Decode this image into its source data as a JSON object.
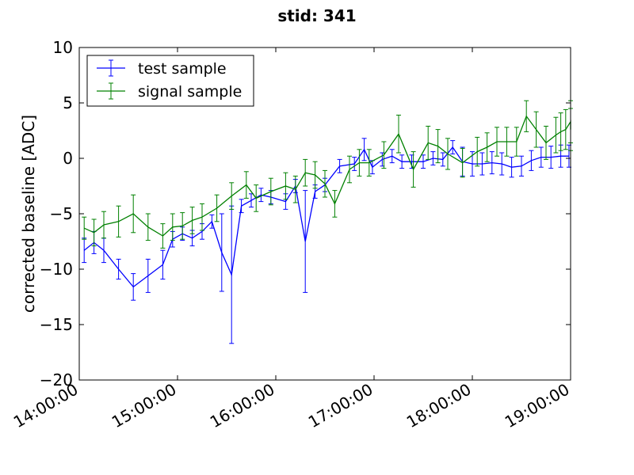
{
  "chart_data": {
    "type": "line",
    "title": "stid: 341",
    "xlabel": "",
    "ylabel": "corrected baseline [ADC]",
    "xlim": [
      "14:00:00",
      "19:00:00"
    ],
    "ylim": [
      -20,
      10
    ],
    "x_ticks": [
      "14:00:00",
      "15:00:00",
      "16:00:00",
      "17:00:00",
      "18:00:00",
      "19:00:00"
    ],
    "y_ticks": [
      10,
      5,
      0,
      -5,
      -10,
      -15,
      -20
    ],
    "y_tick_labels": [
      "10",
      "5",
      "0",
      "−5",
      "−10",
      "−15",
      "−20"
    ],
    "grid": false,
    "legend_position": "top-left",
    "error_bars": true,
    "series": [
      {
        "name": "test sample",
        "color": "#0000ff",
        "points": [
          {
            "x": "14:03:00",
            "y": -8.3,
            "err": 1.1
          },
          {
            "x": "14:09:00",
            "y": -7.6,
            "err": 1.0
          },
          {
            "x": "14:15:00",
            "y": -8.3,
            "err": 1.1
          },
          {
            "x": "14:24:00",
            "y": -10.0,
            "err": 0.9
          },
          {
            "x": "14:33:00",
            "y": -11.6,
            "err": 1.2
          },
          {
            "x": "14:42:00",
            "y": -10.6,
            "err": 1.5
          },
          {
            "x": "14:51:00",
            "y": -9.6,
            "err": 1.3
          },
          {
            "x": "14:57:00",
            "y": -7.3,
            "err": 0.7
          },
          {
            "x": "15:03:00",
            "y": -6.8,
            "err": 0.6
          },
          {
            "x": "15:09:00",
            "y": -7.2,
            "err": 0.7
          },
          {
            "x": "15:15:00",
            "y": -6.6,
            "err": 0.7
          },
          {
            "x": "15:21:00",
            "y": -5.7,
            "err": 0.6
          },
          {
            "x": "15:27:00",
            "y": -8.5,
            "err": 3.5
          },
          {
            "x": "15:33:00",
            "y": -10.5,
            "err": 6.2
          },
          {
            "x": "15:39:00",
            "y": -4.3,
            "err": 0.6
          },
          {
            "x": "15:45:00",
            "y": -3.8,
            "err": 0.6
          },
          {
            "x": "15:51:00",
            "y": -3.3,
            "err": 0.6
          },
          {
            "x": "15:57:00",
            "y": -3.5,
            "err": 0.6
          },
          {
            "x": "16:06:00",
            "y": -3.9,
            "err": 0.7
          },
          {
            "x": "16:12:00",
            "y": -2.5,
            "err": 0.6
          },
          {
            "x": "16:18:00",
            "y": -7.5,
            "err": 4.6
          },
          {
            "x": "16:24:00",
            "y": -3.0,
            "err": 0.6
          },
          {
            "x": "16:30:00",
            "y": -2.4,
            "err": 0.6
          },
          {
            "x": "16:39:00",
            "y": -0.7,
            "err": 0.6
          },
          {
            "x": "16:48:00",
            "y": -0.5,
            "err": 0.6
          },
          {
            "x": "16:54:00",
            "y": 0.8,
            "err": 1.0
          },
          {
            "x": "16:59:00",
            "y": -0.8,
            "err": 0.6
          },
          {
            "x": "17:05:00",
            "y": -0.1,
            "err": 0.6
          },
          {
            "x": "17:11:00",
            "y": 0.2,
            "err": 0.6
          },
          {
            "x": "17:17:00",
            "y": -0.3,
            "err": 0.6
          },
          {
            "x": "17:23:00",
            "y": -0.3,
            "err": 0.6
          },
          {
            "x": "17:30:00",
            "y": -0.3,
            "err": 0.6
          },
          {
            "x": "17:36:00",
            "y": 0.0,
            "err": 0.6
          },
          {
            "x": "17:42:00",
            "y": -0.1,
            "err": 0.6
          },
          {
            "x": "17:48:00",
            "y": 1.0,
            "err": 0.6
          },
          {
            "x": "17:54:00",
            "y": -0.3,
            "err": 1.3
          },
          {
            "x": "18:00:00",
            "y": -0.5,
            "err": 1.1
          },
          {
            "x": "18:06:00",
            "y": -0.5,
            "err": 1.0
          },
          {
            "x": "18:12:00",
            "y": -0.4,
            "err": 1.0
          },
          {
            "x": "18:18:00",
            "y": -0.5,
            "err": 1.0
          },
          {
            "x": "18:24:00",
            "y": -0.8,
            "err": 0.9
          },
          {
            "x": "18:30:00",
            "y": -0.7,
            "err": 0.9
          },
          {
            "x": "18:36:00",
            "y": -0.2,
            "err": 0.9
          },
          {
            "x": "18:42:00",
            "y": 0.1,
            "err": 0.9
          },
          {
            "x": "18:48:00",
            "y": 0.1,
            "err": 1.0
          },
          {
            "x": "18:54:00",
            "y": 0.2,
            "err": 1.0
          },
          {
            "x": "18:59:00",
            "y": 0.2,
            "err": 1.0
          }
        ]
      },
      {
        "name": "signal sample",
        "color": "#008000",
        "points": [
          {
            "x": "14:03:00",
            "y": -6.3,
            "err": 1.0
          },
          {
            "x": "14:09:00",
            "y": -6.7,
            "err": 1.2
          },
          {
            "x": "14:15:00",
            "y": -6.0,
            "err": 1.2
          },
          {
            "x": "14:24:00",
            "y": -5.7,
            "err": 1.4
          },
          {
            "x": "14:33:00",
            "y": -5.0,
            "err": 1.7
          },
          {
            "x": "14:42:00",
            "y": -6.2,
            "err": 1.2
          },
          {
            "x": "14:51:00",
            "y": -7.0,
            "err": 1.1
          },
          {
            "x": "14:57:00",
            "y": -6.2,
            "err": 1.2
          },
          {
            "x": "15:03:00",
            "y": -6.1,
            "err": 1.2
          },
          {
            "x": "15:09:00",
            "y": -5.6,
            "err": 1.2
          },
          {
            "x": "15:15:00",
            "y": -5.3,
            "err": 1.2
          },
          {
            "x": "15:24:00",
            "y": -4.5,
            "err": 1.2
          },
          {
            "x": "15:33:00",
            "y": -3.4,
            "err": 1.2
          },
          {
            "x": "15:42:00",
            "y": -2.4,
            "err": 1.2
          },
          {
            "x": "15:48:00",
            "y": -3.6,
            "err": 1.2
          },
          {
            "x": "15:57:00",
            "y": -3.0,
            "err": 1.2
          },
          {
            "x": "16:06:00",
            "y": -2.5,
            "err": 1.2
          },
          {
            "x": "16:12:00",
            "y": -2.8,
            "err": 1.2
          },
          {
            "x": "16:18:00",
            "y": -1.3,
            "err": 1.2
          },
          {
            "x": "16:24:00",
            "y": -1.5,
            "err": 1.2
          },
          {
            "x": "16:30:00",
            "y": -2.3,
            "err": 1.2
          },
          {
            "x": "16:36:00",
            "y": -4.1,
            "err": 1.2
          },
          {
            "x": "16:45:00",
            "y": -1.0,
            "err": 1.2
          },
          {
            "x": "16:51:00",
            "y": -0.4,
            "err": 1.2
          },
          {
            "x": "16:57:00",
            "y": -0.4,
            "err": 1.2
          },
          {
            "x": "17:06:00",
            "y": 0.3,
            "err": 1.2
          },
          {
            "x": "17:15:00",
            "y": 2.2,
            "err": 1.7
          },
          {
            "x": "17:24:00",
            "y": -1.0,
            "err": 1.6
          },
          {
            "x": "17:33:00",
            "y": 1.4,
            "err": 1.5
          },
          {
            "x": "17:39:00",
            "y": 1.1,
            "err": 1.5
          },
          {
            "x": "17:45:00",
            "y": 0.4,
            "err": 1.4
          },
          {
            "x": "17:54:00",
            "y": -0.4,
            "err": 1.3
          },
          {
            "x": "18:03:00",
            "y": 0.6,
            "err": 1.3
          },
          {
            "x": "18:09:00",
            "y": 1.0,
            "err": 1.3
          },
          {
            "x": "18:15:00",
            "y": 1.5,
            "err": 1.3
          },
          {
            "x": "18:21:00",
            "y": 1.5,
            "err": 1.3
          },
          {
            "x": "18:27:00",
            "y": 1.5,
            "err": 1.3
          },
          {
            "x": "18:33:00",
            "y": 3.8,
            "err": 1.4
          },
          {
            "x": "18:39:00",
            "y": 2.6,
            "err": 1.6
          },
          {
            "x": "18:45:00",
            "y": 1.4,
            "err": 1.5
          },
          {
            "x": "18:51:00",
            "y": 2.1,
            "err": 1.6
          },
          {
            "x": "18:54:00",
            "y": 2.4,
            "err": 1.7
          },
          {
            "x": "18:57:00",
            "y": 2.6,
            "err": 1.8
          },
          {
            "x": "19:00:00",
            "y": 3.3,
            "err": 1.9
          },
          {
            "x": "19:00:00",
            "y": 2.6,
            "err": 1.9
          }
        ]
      }
    ]
  }
}
